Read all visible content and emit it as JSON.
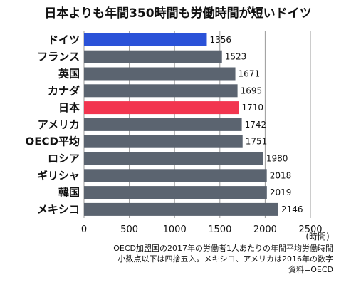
{
  "chart_data": {
    "type": "bar",
    "orientation": "horizontal",
    "title": "日本よりも年間350時間も労働時間が短いドイツ",
    "categories": [
      "ドイツ",
      "フランス",
      "英国",
      "カナダ",
      "日本",
      "アメリカ",
      "OECD平均",
      "ロシア",
      "ギリシャ",
      "韓国",
      "メキシコ"
    ],
    "values": [
      1356,
      1523,
      1671,
      1695,
      1710,
      1742,
      1751,
      1980,
      2018,
      2019,
      2146
    ],
    "value_labels": [
      "1356",
      "1523",
      "1671",
      "1695",
      "1710",
      "1742",
      "1751",
      "1980",
      "2018",
      "2019",
      "2146"
    ],
    "xlim": [
      0,
      2500
    ],
    "x_ticks": [
      0,
      500,
      1000,
      1500,
      2000,
      2500
    ],
    "x_tick_labels": [
      "0",
      "500",
      "1000",
      "1500",
      "2000",
      "2500"
    ],
    "x_unit": "(時間)",
    "grid": true,
    "notes": [
      "OECD加盟国の2017年の労働者1人あたりの年間平均労働時間",
      "小数点以下は四捨五入。メキシコ、アメリカは2016年の数字",
      "資料=OECD"
    ],
    "colors": {
      "default_bar": "#5b6470",
      "germany_bar": "#2a52d8",
      "japan_bar": "#f2354f",
      "grid": "#9a9a9a"
    },
    "bar_colors": [
      "#2a52d8",
      "#5b6470",
      "#5b6470",
      "#5b6470",
      "#f2354f",
      "#5b6470",
      "#5b6470",
      "#5b6470",
      "#5b6470",
      "#5b6470",
      "#5b6470"
    ]
  }
}
